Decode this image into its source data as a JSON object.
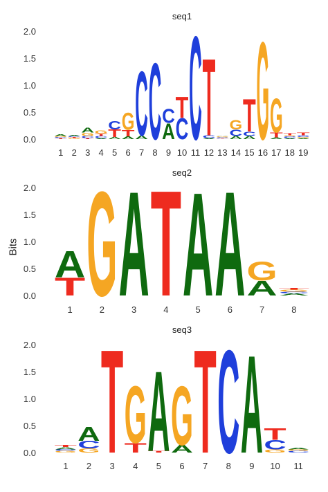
{
  "figure": {
    "ylabel": "Bits"
  },
  "colors": {
    "A": "#0f6a0f",
    "C": "#1f3fdb",
    "G": "#f5a623",
    "T": "#ee2b1f"
  },
  "chart_data": [
    {
      "type": "sequence-logo",
      "title": "seq1",
      "ylim": [
        0,
        2
      ],
      "yticks": [
        "0.0",
        "0.5",
        "1.0",
        "1.5",
        "2.0"
      ],
      "positions": [
        [
          [
            "T",
            0.02
          ],
          [
            "C",
            0.02
          ],
          [
            "G",
            0.02
          ],
          [
            "A",
            0.03
          ]
        ],
        [
          [
            "G",
            0.02
          ],
          [
            "T",
            0.02
          ],
          [
            "C",
            0.02
          ],
          [
            "A",
            0.02
          ]
        ],
        [
          [
            "T",
            0.02
          ],
          [
            "C",
            0.04
          ],
          [
            "G",
            0.06
          ],
          [
            "A",
            0.09
          ]
        ],
        [
          [
            "A",
            0.02
          ],
          [
            "C",
            0.04
          ],
          [
            "T",
            0.04
          ],
          [
            "G",
            0.06
          ]
        ],
        [
          [
            "A",
            0.04
          ],
          [
            "T",
            0.14
          ],
          [
            "C",
            0.16
          ]
        ],
        [
          [
            "A",
            0.05
          ],
          [
            "T",
            0.12
          ],
          [
            "G",
            0.32
          ]
        ],
        [
          [
            "A",
            0.07
          ],
          [
            "C",
            1.22
          ]
        ],
        [
          [
            "C",
            1.45
          ]
        ],
        [
          [
            "A",
            0.3
          ],
          [
            "C",
            0.26
          ]
        ],
        [
          [
            "C",
            0.4
          ],
          [
            "T",
            0.4
          ]
        ],
        [
          [
            "C",
            1.96
          ]
        ],
        [
          [
            "A",
            0.02
          ],
          [
            "C",
            0.05
          ],
          [
            "T",
            1.46
          ]
        ],
        [
          [
            "T",
            0.01
          ],
          [
            "C",
            0.02
          ],
          [
            "G",
            0.02
          ],
          [
            "A",
            0.01
          ]
        ],
        [
          [
            "A",
            0.06
          ],
          [
            "C",
            0.12
          ],
          [
            "G",
            0.18
          ]
        ],
        [
          [
            "A",
            0.06
          ],
          [
            "C",
            0.08
          ],
          [
            "T",
            0.62
          ]
        ],
        [
          [
            "G",
            1.85
          ]
        ],
        [
          [
            "A",
            0.03
          ],
          [
            "T",
            0.09
          ],
          [
            "G",
            0.65
          ]
        ],
        [
          [
            "A",
            0.02
          ],
          [
            "C",
            0.03
          ],
          [
            "G",
            0.02
          ],
          [
            "T",
            0.04
          ]
        ],
        [
          [
            "A",
            0.02
          ],
          [
            "G",
            0.02
          ],
          [
            "C",
            0.03
          ],
          [
            "T",
            0.05
          ]
        ]
      ]
    },
    {
      "type": "sequence-logo",
      "title": "seq2",
      "ylim": [
        0,
        2
      ],
      "yticks": [
        "0.0",
        "0.5",
        "1.0",
        "1.5",
        "2.0"
      ],
      "positions": [
        [
          [
            "T",
            0.34
          ],
          [
            "A",
            0.5
          ]
        ],
        [
          [
            "G",
            1.98
          ]
        ],
        [
          [
            "A",
            1.98
          ]
        ],
        [
          [
            "T",
            2.0
          ]
        ],
        [
          [
            "A",
            1.96
          ]
        ],
        [
          [
            "A",
            1.98
          ]
        ],
        [
          [
            "A",
            0.28
          ],
          [
            "G",
            0.36
          ]
        ],
        [
          [
            "A",
            0.04
          ],
          [
            "C",
            0.03
          ],
          [
            "G",
            0.04
          ],
          [
            "T",
            0.03
          ]
        ]
      ]
    },
    {
      "type": "sequence-logo",
      "title": "seq3",
      "ylim": [
        0,
        2
      ],
      "yticks": [
        "0.0",
        "0.5",
        "1.0",
        "1.5",
        "2.0"
      ],
      "positions": [
        [
          [
            "G",
            0.03
          ],
          [
            "C",
            0.03
          ],
          [
            "A",
            0.04
          ],
          [
            "T",
            0.04
          ]
        ],
        [
          [
            "G",
            0.08
          ],
          [
            "C",
            0.14
          ],
          [
            "A",
            0.26
          ]
        ],
        [
          [
            "T",
            1.96
          ]
        ],
        [
          [
            "T",
            0.18
          ],
          [
            "G",
            1.08
          ]
        ],
        [
          [
            "T",
            0.03
          ],
          [
            "A",
            1.52
          ]
        ],
        [
          [
            "A",
            0.14
          ],
          [
            "G",
            1.12
          ]
        ],
        [
          [
            "T",
            1.96
          ]
        ],
        [
          [
            "C",
            1.95
          ]
        ],
        [
          [
            "A",
            1.85
          ]
        ],
        [
          [
            "G",
            0.06
          ],
          [
            "C",
            0.18
          ],
          [
            "T",
            0.22
          ]
        ],
        [
          [
            "C",
            0.03
          ],
          [
            "G",
            0.03
          ],
          [
            "A",
            0.03
          ]
        ]
      ]
    }
  ]
}
